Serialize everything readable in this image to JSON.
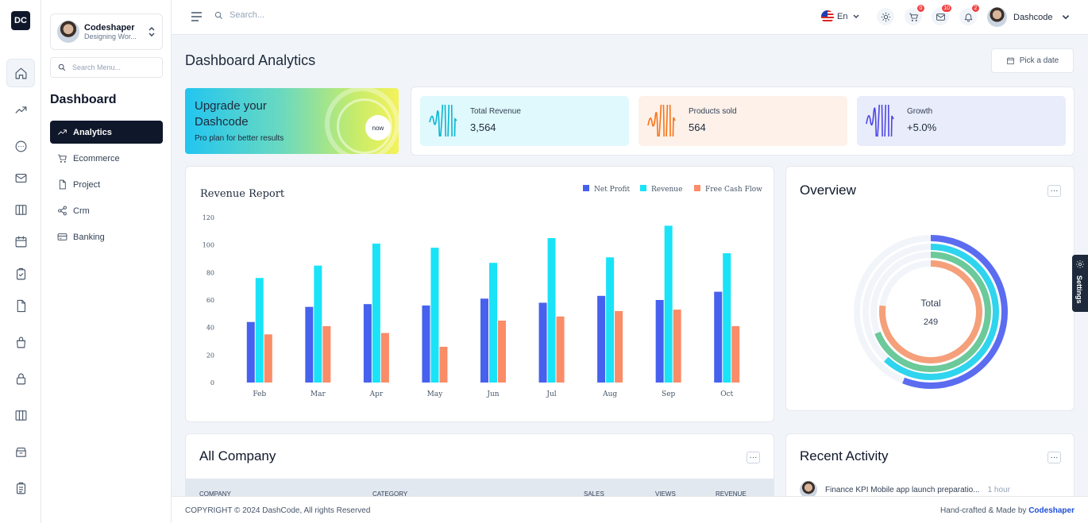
{
  "app": {
    "logo_text": "DC"
  },
  "profile": {
    "name": "Codeshaper",
    "subtitle": "Designing Wor..."
  },
  "sidebar": {
    "search_placeholder": "Search Menu...",
    "title": "Dashboard",
    "items": [
      {
        "label": "Analytics",
        "icon": "trending-up-icon"
      },
      {
        "label": "Ecommerce",
        "icon": "cart-icon"
      },
      {
        "label": "Project",
        "icon": "file-icon"
      },
      {
        "label": "Crm",
        "icon": "share-icon"
      },
      {
        "label": "Banking",
        "icon": "credit-card-icon"
      }
    ]
  },
  "rail": [
    "home-icon",
    "trending-up-icon",
    "chat-icon",
    "mail-icon",
    "columns-icon",
    "calendar-icon",
    "clipboard-icon",
    "file-icon",
    "bag-icon",
    "lock-icon",
    "columns-icon",
    "archive-icon",
    "clipboard-list-icon"
  ],
  "header": {
    "search_placeholder": "Search...",
    "language": "En",
    "cart_count": "0",
    "mail_count": "10",
    "notification_count": "2",
    "user_name": "Dashcode"
  },
  "page": {
    "title": "Dashboard Analytics",
    "date_button": "Pick a date"
  },
  "upgrade": {
    "title": "Upgrade your Dashcode",
    "subtitle": "Pro plan for better results",
    "button": "now"
  },
  "stats": [
    {
      "label": "Total Revenue",
      "value": "3,564",
      "color": "#06b6d4",
      "bg": "#e0f9fc"
    },
    {
      "label": "Products sold",
      "value": "564",
      "color": "#f97316",
      "bg": "#fdf1ea"
    },
    {
      "label": "Growth",
      "value": "+5.0%",
      "color": "#4f46e5",
      "bg": "#e8ecfb"
    }
  ],
  "chart_data": {
    "type": "bar",
    "title": "Revenue Report",
    "categories": [
      "Feb",
      "Mar",
      "Apr",
      "May",
      "Jun",
      "Jul",
      "Aug",
      "Sep",
      "Oct"
    ],
    "series": [
      {
        "name": "Net Profit",
        "color": "#4661ee",
        "values": [
          44,
          55,
          57,
          56,
          61,
          58,
          63,
          60,
          66
        ]
      },
      {
        "name": "Revenue",
        "color": "#1ae3f8",
        "values": [
          76,
          85,
          101,
          98,
          87,
          105,
          91,
          114,
          94
        ]
      },
      {
        "name": "Free Cash Flow",
        "color": "#fa8c68",
        "values": [
          35,
          41,
          36,
          26,
          45,
          48,
          52,
          53,
          41
        ]
      }
    ],
    "yticks": [
      "0",
      "20",
      "40",
      "60",
      "80",
      "100",
      "120"
    ],
    "ylim": [
      0,
      120
    ],
    "legend_position": "top-right"
  },
  "overview": {
    "title": "Overview",
    "total_label": "Total",
    "total_value": "249",
    "rings": [
      {
        "color": "#5b6cf0",
        "value": 0.56
      },
      {
        "color": "#2fd4ee",
        "value": 0.62
      },
      {
        "color": "#6cc99a",
        "value": 0.69
      },
      {
        "color": "#f5a07a",
        "value": 0.77
      }
    ],
    "track_color": "#f1f5f9"
  },
  "company": {
    "title": "All Company",
    "columns": [
      "Company",
      "Category",
      "Sales",
      "Views",
      "Revenue"
    ]
  },
  "activity": {
    "title": "Recent Activity",
    "items": [
      {
        "text": "Finance KPI Mobile app launch preparatio...",
        "time": "1 hour"
      }
    ]
  },
  "settings_tab": "Settings",
  "footer": {
    "copyright": "COPYRIGHT © 2024 DashCode, All rights Reserved",
    "credit_prefix": "Hand-crafted & Made by",
    "credit_name": "Codeshaper"
  }
}
